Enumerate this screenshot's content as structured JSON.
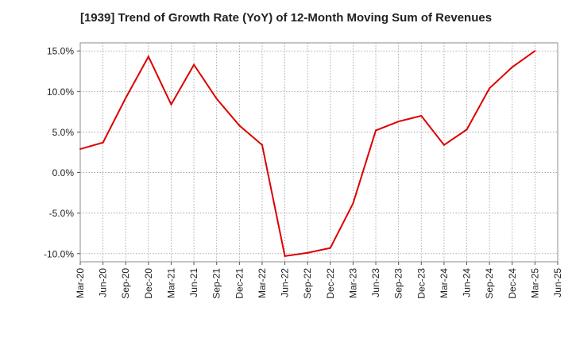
{
  "chart_data": {
    "type": "line",
    "title": "[1939]  Trend of Growth Rate (YoY) of 12-Month Moving Sum of Revenues",
    "xlabel": "",
    "ylabel": "",
    "x_ticks": [
      "Mar-20",
      "Jun-20",
      "Sep-20",
      "Dec-20",
      "Mar-21",
      "Jun-21",
      "Sep-21",
      "Dec-21",
      "Mar-22",
      "Jun-22",
      "Sep-22",
      "Dec-22",
      "Mar-23",
      "Jun-23",
      "Sep-23",
      "Dec-23",
      "Mar-24",
      "Jun-24",
      "Sep-24",
      "Dec-24",
      "Mar-25",
      "Jun-25"
    ],
    "y_ticks": [
      15.0,
      10.0,
      5.0,
      0.0,
      -5.0,
      -10.0
    ],
    "y_tick_labels": [
      "15.0%",
      "10.0%",
      "5.0%",
      "0.0%",
      "-5.0%",
      "-10.0%"
    ],
    "ylim": [
      -11.0,
      16.0
    ],
    "grid": true,
    "series": [
      {
        "color": "#dd0000",
        "x": [
          "Mar-20",
          "Jun-20",
          "Sep-20",
          "Dec-20",
          "Mar-21",
          "Jun-21",
          "Sep-21",
          "Dec-21",
          "Mar-22",
          "Jun-22",
          "Sep-22",
          "Dec-22",
          "Mar-23",
          "Jun-23",
          "Sep-23",
          "Dec-23",
          "Mar-24",
          "Jun-24",
          "Sep-24",
          "Dec-24",
          "Mar-25"
        ],
        "values": [
          2.9,
          3.7,
          9.2,
          14.3,
          8.4,
          13.3,
          9.1,
          5.8,
          3.4,
          -10.3,
          -9.9,
          -9.3,
          -3.8,
          5.2,
          6.3,
          7.0,
          3.4,
          5.3,
          10.4,
          13.0,
          15.0
        ]
      }
    ]
  }
}
